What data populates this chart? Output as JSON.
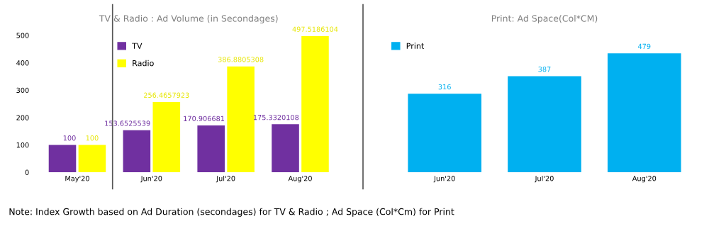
{
  "chart_data": [
    {
      "type": "bar",
      "title": "TV & Radio : Ad Volume (in Secondages)",
      "categories": [
        "May'20",
        "Jun'20",
        "Jul'20",
        "Aug'20"
      ],
      "series": [
        {
          "name": "TV",
          "color": "#7030a0",
          "values": [
            100,
            153.6525539,
            170.906681,
            175.3320108
          ]
        },
        {
          "name": "Radio",
          "color": "#ffff00",
          "values": [
            100,
            256.4657923,
            386.8805308,
            497.5186104
          ]
        }
      ],
      "ylim": [
        0,
        500
      ],
      "yticks": [
        0,
        100,
        200,
        300,
        400,
        500
      ],
      "data_labels": true,
      "legend": "top left",
      "grid": false
    },
    {
      "type": "bar",
      "title": "Print: Ad Space(Col*CM)",
      "categories": [
        "Jun'20",
        "Jul'20",
        "Aug'20"
      ],
      "series": [
        {
          "name": "Print",
          "color": "#00b0f0",
          "values": [
            316,
            387,
            479
          ]
        }
      ],
      "data_labels": true,
      "legend": "top left",
      "grid": false,
      "tick_labels": "x",
      "annotations": [
        "Note: Index Growth based on Ad Duration (secondages) for TV & Radio ; Ad Space (Col*Cm) for Print"
      ]
    }
  ]
}
